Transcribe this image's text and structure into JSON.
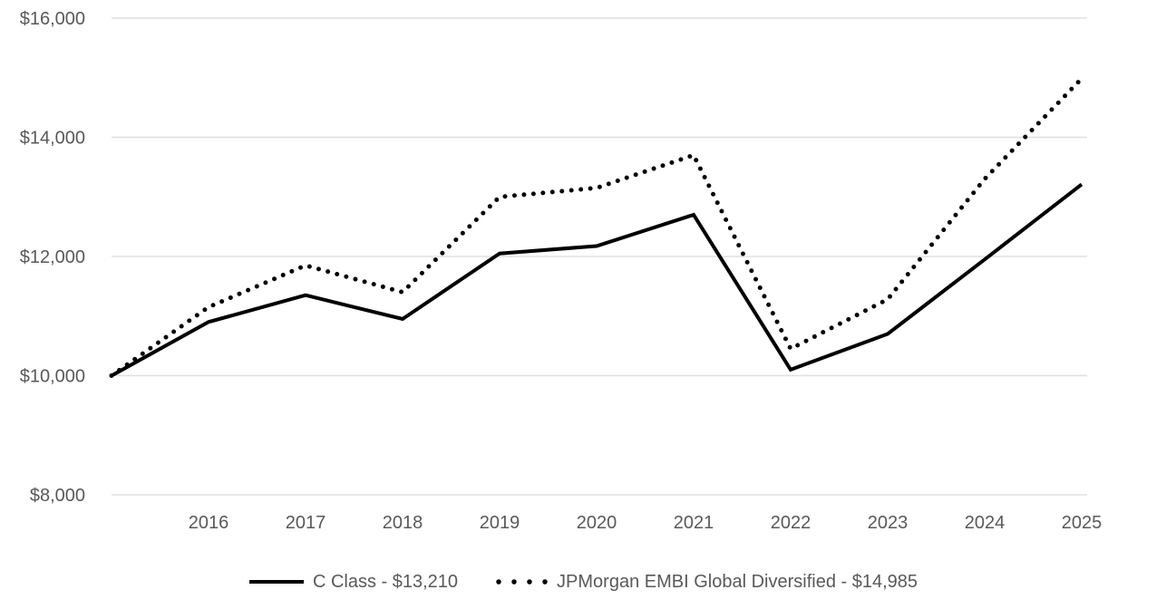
{
  "chart_data": {
    "type": "line",
    "title": "",
    "xlabel": "",
    "ylabel": "",
    "x_tick_labels": [
      "2016",
      "2017",
      "2018",
      "2019",
      "2020",
      "2021",
      "2022",
      "2023",
      "2024",
      "2025"
    ],
    "values_start_before_first_tick": true,
    "y_tick_labels": [
      "$16,000",
      "$14,000",
      "$12,000",
      "$10,000",
      "$8,000"
    ],
    "y_tick_values": [
      16000,
      14000,
      12000,
      10000,
      8000
    ],
    "ylim": [
      8000,
      16000
    ],
    "grid": "horizontal-only",
    "legend_position": "bottom-center",
    "series": [
      {
        "name": "C Class",
        "legend_label": "C Class - $13,210",
        "final_value_label": "$13,210",
        "line_style": "solid",
        "values": [
          10000,
          10900,
          11350,
          10950,
          12050,
          12175,
          12700,
          10100,
          10700,
          11950,
          13210
        ]
      },
      {
        "name": "JPMorgan EMBI Global Diversified",
        "legend_label": "JPMorgan EMBI Global Diversified - $14,985",
        "final_value_label": "$14,985",
        "line_style": "dotted",
        "values": [
          10000,
          11150,
          11850,
          11400,
          13000,
          13150,
          13700,
          10450,
          11280,
          13300,
          14985
        ]
      }
    ],
    "colors": {
      "line": "#000000",
      "grid": "#e0e0e0",
      "axis_text": "#595959"
    }
  }
}
